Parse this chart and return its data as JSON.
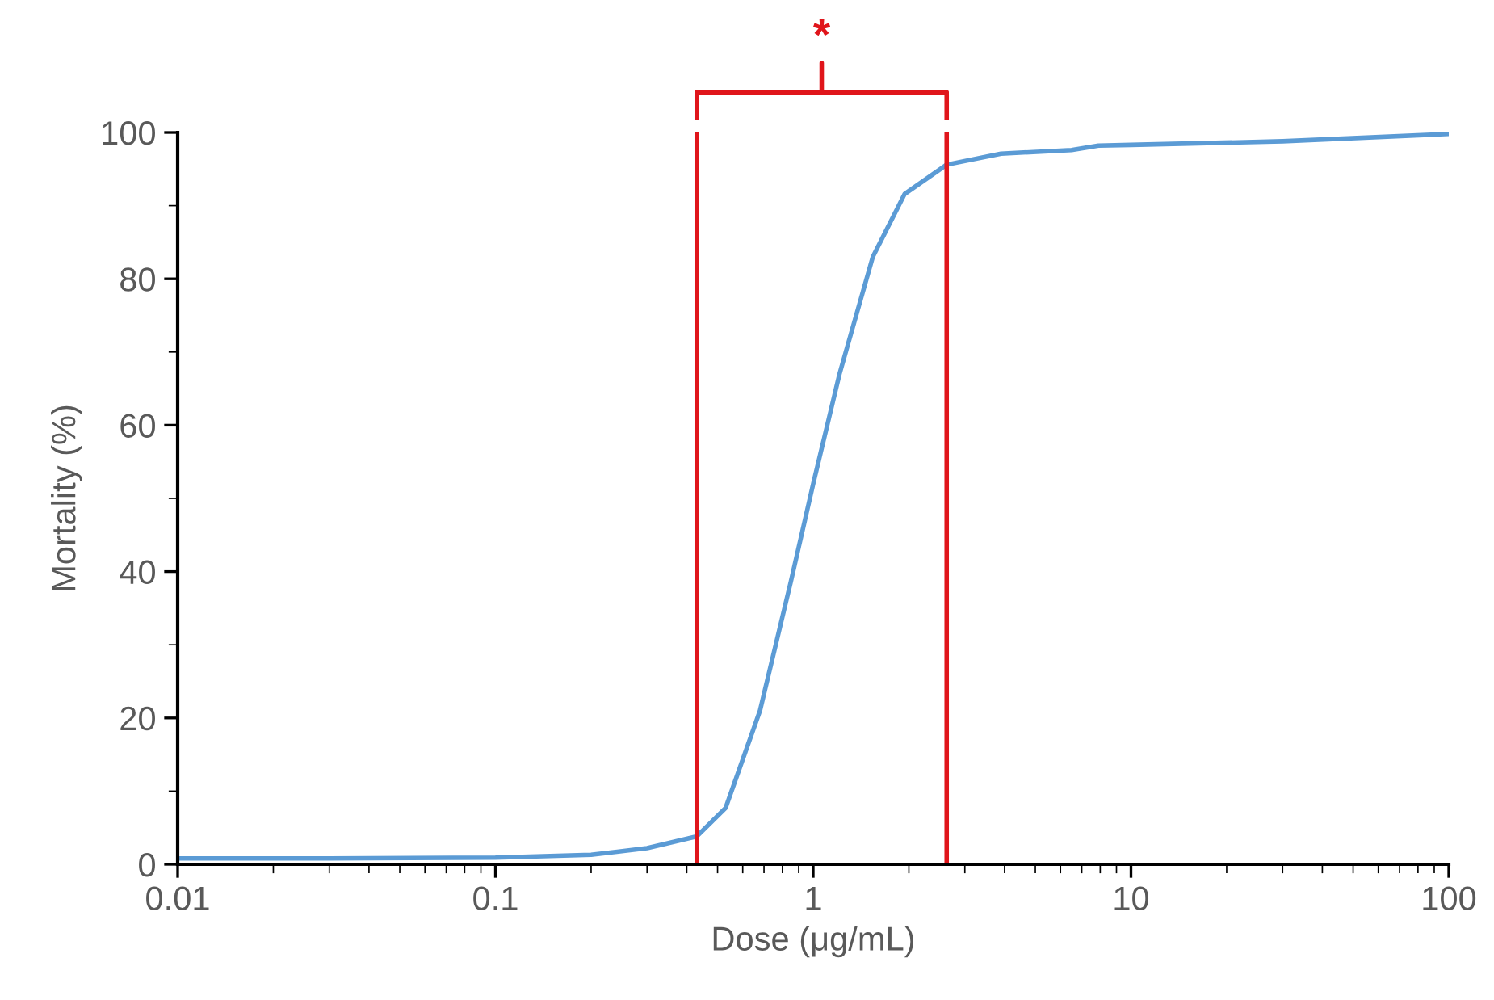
{
  "chart_data": {
    "type": "line",
    "xlabel": "Dose (μg/mL)",
    "ylabel": "Mortality (%)",
    "log": "x",
    "xlim": [
      0.01,
      100
    ],
    "xticks": [
      0.01,
      0.1,
      1,
      10,
      100
    ],
    "ylim": [
      0,
      100
    ],
    "yticks": [
      0,
      20,
      40,
      60,
      80,
      100
    ],
    "grid": false,
    "marker": "none",
    "line_style": "solid",
    "series": [
      {
        "color": "#5b9bd5",
        "x": [
          0.01,
          0.03,
          0.1,
          0.2,
          0.3,
          0.43,
          0.53,
          0.68,
          0.85,
          1.0,
          1.21,
          1.54,
          1.94,
          2.63,
          3.9,
          6.5,
          7.9,
          10,
          30,
          100
        ],
        "values": [
          0.8,
          0.8,
          0.9,
          1.3,
          2.2,
          3.8,
          7.7,
          21,
          38.6,
          52,
          67,
          83,
          91.6,
          95.6,
          97.1,
          97.6,
          98.2,
          98.3,
          98.8,
          99.8
        ]
      }
    ],
    "ref_lines": [
      {
        "axis": "x",
        "value": 0.43,
        "color": "#e0151b",
        "line_style": "solid"
      },
      {
        "axis": "x",
        "value": 2.63,
        "color": "#e0151b",
        "line_style": "solid"
      }
    ],
    "annotations": [
      "*"
    ]
  }
}
